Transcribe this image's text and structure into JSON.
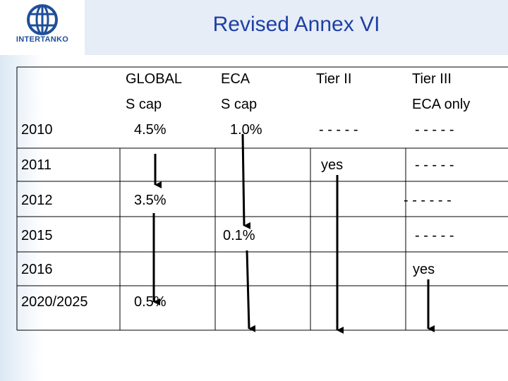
{
  "logo": {
    "text": "INTERTANKO"
  },
  "title": "Revised Annex VI",
  "headers": {
    "global": [
      "GLOBAL",
      "S cap"
    ],
    "eca": [
      "ECA",
      "S cap"
    ],
    "tier2": [
      "Tier II"
    ],
    "tier3": [
      "Tier III",
      "ECA only"
    ]
  },
  "rows": [
    {
      "year": "2010",
      "global": "4.5%",
      "eca": "1.0%",
      "tier2": "- - - - -",
      "tier3": "- - - - -"
    },
    {
      "year": "2011",
      "global": "",
      "eca": "",
      "tier2": "yes",
      "tier3": "- - - - -"
    },
    {
      "year": "2012",
      "global": "3.5%",
      "eca": "",
      "tier2": "",
      "tier3": "- - - - - -"
    },
    {
      "year": "2015",
      "global": "",
      "eca": "0.1%",
      "tier2": "",
      "tier3": "- - - -  -"
    },
    {
      "year": "2016",
      "global": "",
      "eca": "",
      "tier2": "",
      "tier3": "yes"
    },
    {
      "year": "2020/2025",
      "global": "0.5%",
      "eca": "",
      "tier2": "",
      "tier3": ""
    }
  ],
  "colors": {
    "title": "#1f3fa6",
    "grid": "#000000",
    "logo": "#1f4e9a"
  }
}
